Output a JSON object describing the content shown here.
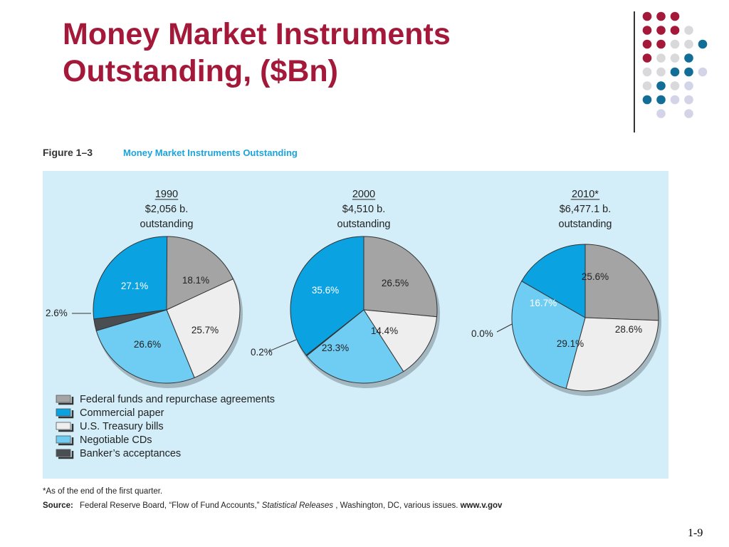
{
  "slide": {
    "title_line1": "Money Market Instruments",
    "title_line2": "Outstanding, ($Bn)",
    "number": "1-9"
  },
  "figure": {
    "label": "Figure 1–3",
    "caption": "Money Market Instruments Outstanding",
    "footnote": "*As of the end of the first quarter.",
    "source_label": "Source:",
    "source_text_1": "Federal Reserve Board, “Flow of Fund Accounts,” ",
    "source_italic": "Statistical Releases",
    "source_text_2": ", Washington, DC, various issues. ",
    "source_url": "www.v.gov"
  },
  "colors": {
    "title": "#A4193A",
    "panel": "#D3EEF9",
    "caption": "#1AA3DD",
    "dot_red": "#A4193A",
    "dot_gray": "#D9D9DB",
    "dot_blue": "#126E96",
    "dot_lavender": "#D4D4E8"
  },
  "decor_dots": [
    [
      "red",
      "red",
      "red",
      null,
      null
    ],
    [
      "red",
      "red",
      "red",
      "gray",
      null
    ],
    [
      "red",
      "red",
      "gray",
      "gray",
      "blue"
    ],
    [
      "red",
      "gray",
      "gray",
      "blue",
      null
    ],
    [
      "gray",
      "gray",
      "blue",
      "blue",
      "lavender"
    ],
    [
      "gray",
      "blue",
      "gray",
      "lavender",
      null
    ],
    [
      "blue",
      "blue",
      "lavender",
      "lavender",
      null
    ],
    [
      null,
      "lavender",
      null,
      "lavender",
      null
    ]
  ],
  "chart_data": {
    "type": "pie",
    "legend_position": "bottom-left",
    "legend": [
      {
        "name": "Federal funds and repurchase agreements",
        "color": "#A4A4A4"
      },
      {
        "name": "Commercial paper",
        "color": "#0AA2E0"
      },
      {
        "name": "U.S. Treasury bills",
        "color": "#EEEEEE"
      },
      {
        "name": "Negotiable CDs",
        "color": "#6FCDF3"
      },
      {
        "name": "Banker’s acceptances",
        "color": "#4A4E53"
      }
    ],
    "charts": [
      {
        "year": "1990",
        "total": "$2,056 b.",
        "subtitle": "outstanding",
        "slices": [
          {
            "name": "Federal funds and repurchase agreements",
            "value": 18.1,
            "label": "18.1%"
          },
          {
            "name": "U.S. Treasury bills",
            "value": 25.7,
            "label": "25.7%"
          },
          {
            "name": "Negotiable CDs",
            "value": 26.6,
            "label": "26.6%"
          },
          {
            "name": "Banker’s acceptances",
            "value": 2.6,
            "label": "2.6%"
          },
          {
            "name": "Commercial paper",
            "value": 27.1,
            "label": "27.1%"
          }
        ]
      },
      {
        "year": "2000",
        "total": "$4,510 b.",
        "subtitle": "outstanding",
        "slices": [
          {
            "name": "Federal funds and repurchase agreements",
            "value": 26.5,
            "label": "26.5%"
          },
          {
            "name": "U.S. Treasury bills",
            "value": 14.4,
            "label": "14.4%"
          },
          {
            "name": "Negotiable CDs",
            "value": 23.3,
            "label": "23.3%"
          },
          {
            "name": "Banker’s acceptances",
            "value": 0.2,
            "label": "0.2%"
          },
          {
            "name": "Commercial paper",
            "value": 35.6,
            "label": "35.6%"
          }
        ]
      },
      {
        "year": "2010*",
        "total": "$6,477.1 b.",
        "subtitle": "outstanding",
        "slices": [
          {
            "name": "Federal funds and repurchase agreements",
            "value": 25.6,
            "label": "25.6%"
          },
          {
            "name": "U.S. Treasury bills",
            "value": 28.6,
            "label": "28.6%"
          },
          {
            "name": "Negotiable CDs",
            "value": 29.1,
            "label": "29.1%"
          },
          {
            "name": "Banker’s acceptances",
            "value": 0.0,
            "label": "0.0%"
          },
          {
            "name": "Commercial paper",
            "value": 16.7,
            "label": "16.7%"
          }
        ]
      }
    ]
  }
}
